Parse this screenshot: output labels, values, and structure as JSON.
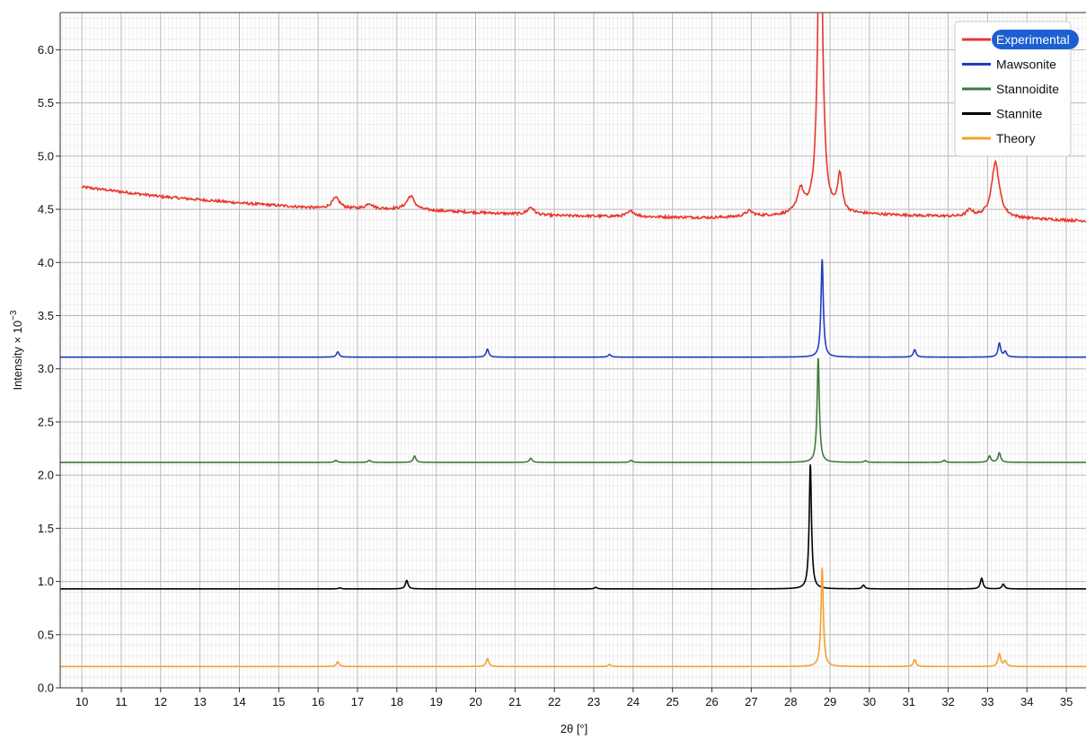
{
  "chart_data": {
    "type": "line",
    "title": "",
    "xlabel": "2θ [°]",
    "ylabel_main": "Intensity × 10",
    "ylabel_exp": "−3",
    "xlim": [
      9.45,
      35.5
    ],
    "ylim": [
      0.0,
      6.35
    ],
    "x_ticks": [
      "10",
      "11",
      "12",
      "13",
      "14",
      "15",
      "16",
      "17",
      "18",
      "19",
      "20",
      "21",
      "22",
      "23",
      "24",
      "25",
      "26",
      "27",
      "28",
      "29",
      "30",
      "31",
      "32",
      "33",
      "34",
      "35"
    ],
    "y_ticks": [
      "0.0",
      "0.5",
      "1.0",
      "1.5",
      "2.0",
      "2.5",
      "3.0",
      "3.5",
      "4.0",
      "4.5",
      "5.0",
      "5.5",
      "6.0"
    ],
    "grid": true,
    "legend_position": "top-right",
    "series": [
      {
        "name": "Experimental",
        "color": "#e8372b",
        "baseline": [
          [
            10.0,
            4.71
          ],
          [
            12.0,
            4.62
          ],
          [
            14.0,
            4.56
          ],
          [
            16.0,
            4.51
          ],
          [
            18.0,
            4.5
          ],
          [
            20.0,
            4.47
          ],
          [
            22.0,
            4.44
          ],
          [
            24.0,
            4.43
          ],
          [
            26.0,
            4.42
          ],
          [
            28.0,
            4.44
          ],
          [
            30.0,
            4.45
          ],
          [
            32.0,
            4.43
          ],
          [
            34.0,
            4.41
          ],
          [
            35.5,
            4.39
          ]
        ],
        "peaks": [
          [
            16.45,
            0.1,
            0.12
          ],
          [
            17.3,
            0.05,
            0.1
          ],
          [
            18.35,
            0.13,
            0.12
          ],
          [
            21.4,
            0.07,
            0.1
          ],
          [
            23.95,
            0.05,
            0.12
          ],
          [
            26.95,
            0.05,
            0.12
          ],
          [
            28.25,
            0.22,
            0.1
          ],
          [
            28.75,
            3.2,
            0.07
          ],
          [
            29.25,
            0.35,
            0.07
          ],
          [
            33.2,
            0.52,
            0.12
          ],
          [
            32.55,
            0.06,
            0.1
          ]
        ],
        "noise": 0.012
      },
      {
        "name": "Mawsonite",
        "color": "#1f3fbf",
        "baseline": [
          [
            9.45,
            3.11
          ],
          [
            35.5,
            3.11
          ]
        ],
        "peaks": [
          [
            16.5,
            0.05,
            0.04
          ],
          [
            20.3,
            0.075,
            0.04
          ],
          [
            23.4,
            0.025,
            0.04
          ],
          [
            28.8,
            0.92,
            0.035
          ],
          [
            31.15,
            0.07,
            0.04
          ],
          [
            33.3,
            0.13,
            0.04
          ],
          [
            33.45,
            0.05,
            0.04
          ]
        ],
        "noise": 0
      },
      {
        "name": "Stannoidite",
        "color": "#3f7a3f",
        "baseline": [
          [
            9.45,
            2.12
          ],
          [
            35.5,
            2.12
          ]
        ],
        "peaks": [
          [
            16.45,
            0.02,
            0.04
          ],
          [
            17.3,
            0.02,
            0.04
          ],
          [
            18.45,
            0.06,
            0.04
          ],
          [
            21.4,
            0.04,
            0.04
          ],
          [
            23.95,
            0.02,
            0.04
          ],
          [
            28.7,
            0.98,
            0.035
          ],
          [
            29.9,
            0.015,
            0.04
          ],
          [
            31.9,
            0.02,
            0.04
          ],
          [
            33.05,
            0.06,
            0.04
          ],
          [
            33.3,
            0.09,
            0.04
          ]
        ],
        "noise": 0
      },
      {
        "name": "Stannite",
        "color": "#000000",
        "baseline": [
          [
            9.45,
            0.93
          ],
          [
            35.5,
            0.93
          ]
        ],
        "peaks": [
          [
            16.55,
            0.01,
            0.04
          ],
          [
            18.25,
            0.08,
            0.04
          ],
          [
            23.05,
            0.015,
            0.04
          ],
          [
            28.5,
            1.17,
            0.035
          ],
          [
            29.85,
            0.035,
            0.04
          ],
          [
            32.85,
            0.1,
            0.04
          ],
          [
            33.4,
            0.045,
            0.04
          ]
        ],
        "noise": 0
      },
      {
        "name": "Theory",
        "color": "#f5a030",
        "baseline": [
          [
            9.45,
            0.2
          ],
          [
            35.5,
            0.2
          ]
        ],
        "peaks": [
          [
            16.5,
            0.045,
            0.04
          ],
          [
            20.3,
            0.075,
            0.04
          ],
          [
            23.4,
            0.02,
            0.04
          ],
          [
            28.8,
            0.93,
            0.035
          ],
          [
            31.15,
            0.065,
            0.04
          ],
          [
            33.3,
            0.12,
            0.04
          ],
          [
            33.45,
            0.05,
            0.04
          ]
        ],
        "noise": 0
      }
    ]
  }
}
